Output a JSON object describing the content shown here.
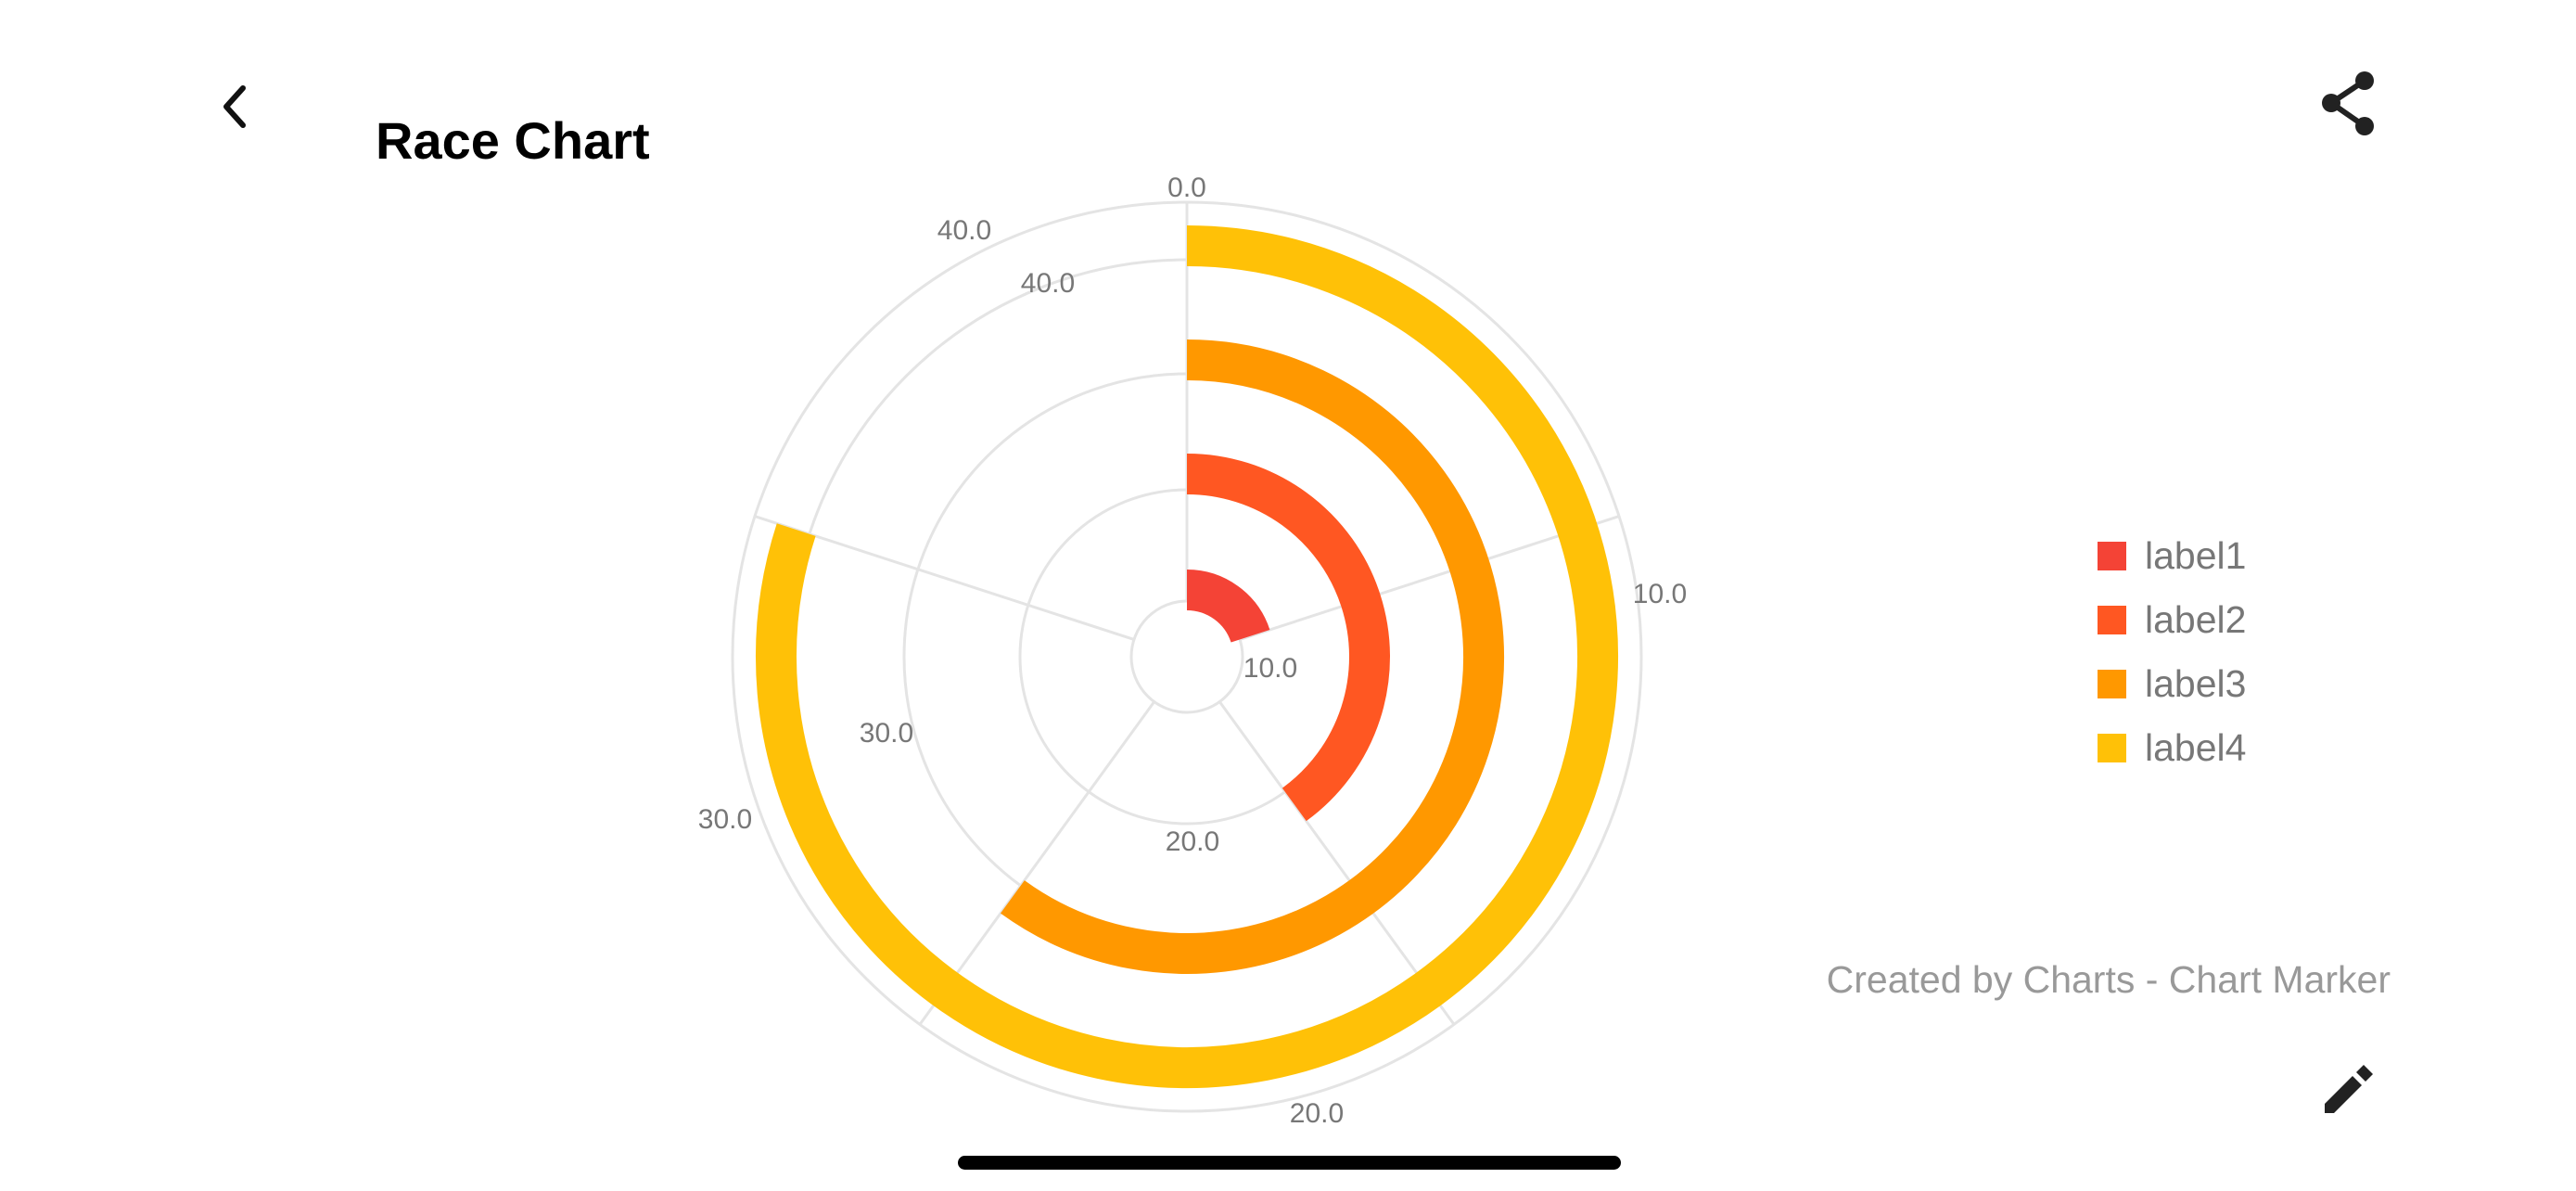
{
  "header": {
    "title": "Race Chart",
    "back_icon": "chevron-left-icon",
    "share_icon": "share-icon"
  },
  "footer": {
    "credit": "Created by Charts - Chart Marker",
    "edit_icon": "pencil-icon"
  },
  "chart_data": {
    "type": "race",
    "title": "",
    "max": 50,
    "series": [
      {
        "name": "label1",
        "value": 10,
        "color": "#F44336"
      },
      {
        "name": "label2",
        "value": 20,
        "color": "#FF5722"
      },
      {
        "name": "label3",
        "value": 30,
        "color": "#FF9800"
      },
      {
        "name": "label4",
        "value": 40,
        "color": "#FFC107"
      }
    ],
    "tick_values": [
      0,
      10,
      20,
      30,
      40
    ],
    "tick_labels": [
      "0.0",
      "10.0",
      "20.0",
      "30.0",
      "40.0"
    ],
    "legend_position": "right",
    "grid": true
  }
}
